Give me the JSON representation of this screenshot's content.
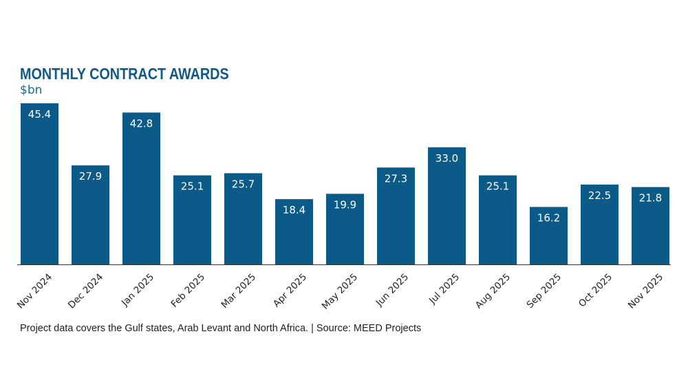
{
  "chart_data": {
    "type": "bar",
    "title": "MONTHLY CONTRACT AWARDS",
    "ylabel": "$bn",
    "xlabel": "",
    "categories": [
      "Nov 2024",
      "Dec 2024",
      "Jan 2025",
      "Feb 2025",
      "Mar 2025",
      "Apr 2025",
      "May 2025",
      "Jun 2025",
      "Jul 2025",
      "Aug 2025",
      "Sep 2025",
      "Oct 2025",
      "Nov 2025"
    ],
    "values": [
      45.4,
      27.9,
      42.8,
      25.1,
      25.7,
      18.4,
      19.9,
      27.3,
      33.0,
      25.1,
      16.2,
      22.5,
      21.8
    ],
    "value_labels": [
      "45.4",
      "27.9",
      "42.8",
      "25.1",
      "25.7",
      "18.4",
      "19.9",
      "27.3",
      "33.0",
      "25.1",
      "16.2",
      "22.5",
      "21.8"
    ],
    "ylim": [
      0,
      45.4
    ],
    "grid": false,
    "bar_color": "#0b5a87",
    "note": "Project data covers the Gulf states, Arab Levant and North Africa. | Source: MEED Projects"
  }
}
